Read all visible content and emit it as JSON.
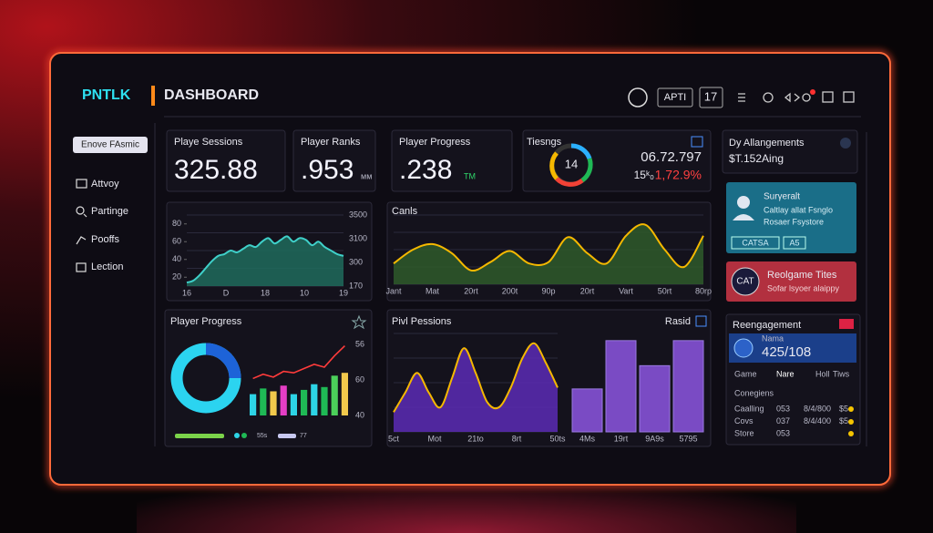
{
  "header": {
    "brand": "PNTLK",
    "title": "DASHBOARD",
    "buttons": [
      "APTI",
      "17"
    ]
  },
  "sidebar": {
    "button": "Enove FAsmic",
    "items": [
      "Attvoy",
      "Partinge",
      "Pooffs",
      "Lection"
    ]
  },
  "stats": [
    {
      "label": "Playe Sessions",
      "value": "325.88"
    },
    {
      "label": "Player Ranks",
      "value": ".953",
      "unit": "мм"
    },
    {
      "label": "Player Progress",
      "value": ".238",
      "unit": "TM"
    }
  ],
  "ratings": {
    "title": "Tiesngs",
    "gauge": "14",
    "value": "06.72.797",
    "prefix": "15ᵏ₀",
    "change": "1,72.9%"
  },
  "arrangements": {
    "title": "Dy Allangements",
    "value": "$T.152Aing"
  },
  "survey_card": {
    "title": "Surγeralt",
    "lines": [
      "Caltlay allat Fsnglo",
      "Rosaer Fsystore"
    ],
    "badges": [
      "CATSA",
      "A5"
    ]
  },
  "realgame_card": {
    "icon": "CAT",
    "title": "Reolgame Tites",
    "subtitle": "Sofar lsyoer alaippy"
  },
  "engagement": {
    "title": "Reengagement",
    "name": "Nama",
    "value": "425/108",
    "tabs": [
      "Game",
      "Nare",
      "Holl",
      "Tiws"
    ],
    "section": "Conegiens",
    "rows": [
      [
        "Caalling",
        "053",
        "8/4/800",
        "$5"
      ],
      [
        "Covs",
        "037",
        "8/4/400",
        "$5"
      ],
      [
        "Store",
        "053"
      ]
    ]
  },
  "charts": [
    {
      "type": "area",
      "yticks": [
        80,
        60,
        40,
        20
      ],
      "ylim": [
        10,
        90
      ],
      "right_labels": [
        "3500",
        "3100",
        "300",
        "170"
      ],
      "xlabels": [
        "16",
        "D",
        "18",
        "10",
        "19"
      ],
      "color": "#3fd0c9",
      "fill": "#1f6b5c",
      "values": [
        14,
        16,
        22,
        30,
        38,
        44,
        46,
        50,
        48,
        52,
        56,
        54,
        60,
        64,
        58,
        62,
        66,
        60,
        64,
        62,
        56,
        60,
        54,
        50,
        46,
        44
      ]
    },
    {
      "type": "area",
      "title": "Canls",
      "ylim": [
        0,
        100
      ],
      "color": "#f5b800",
      "fill": "#2e5a2a",
      "xlabels": [
        "Jant",
        "Mat",
        "20rt",
        "200t",
        "90p",
        "20rt",
        "Vart",
        "50rt",
        "80rp"
      ],
      "values": [
        30,
        50,
        58,
        45,
        20,
        32,
        48,
        30,
        32,
        68,
        45,
        30,
        70,
        86,
        50,
        25,
        70
      ]
    },
    {
      "type": "bar_line",
      "title": "Player Progress",
      "ylim": [
        0,
        100
      ],
      "right_labels": [
        "56",
        "60",
        "40"
      ],
      "bars": {
        "values": [
          30,
          38,
          34,
          42,
          30,
          36,
          44,
          40,
          56,
          60
        ],
        "colors": [
          "#2dd4e6",
          "#1fb955",
          "#f2c94c",
          "#e53ec5",
          "#2dd4e6",
          "#1fb955",
          "#2dd4e6",
          "#1fb955",
          "#4cd05a",
          "#f2c94c"
        ]
      },
      "line": {
        "values": [
          52,
          58,
          54,
          62,
          60,
          66,
          72,
          68,
          84,
          98
        ],
        "color": "#ff3b3b"
      },
      "legend": [
        "55s",
        "77"
      ]
    },
    {
      "type": "area",
      "title": "Pivl Pessions",
      "ylim": [
        0,
        100
      ],
      "color": "#f5b800",
      "fill": "#5b2bb5",
      "xlabels": [
        "5ct",
        "Mot",
        "21to",
        "8rt",
        "50ts"
      ],
      "values": [
        20,
        40,
        60,
        40,
        25,
        55,
        85,
        60,
        30,
        25,
        45,
        75,
        90,
        70,
        45
      ]
    },
    {
      "type": "bar",
      "title": "Rasid",
      "ylim": [
        0,
        110
      ],
      "color": "#7a4bc4",
      "categories": [
        "4Ms",
        "19rt",
        "9A9s",
        "5795"
      ],
      "values": [
        48,
        102,
        74,
        102
      ]
    }
  ]
}
